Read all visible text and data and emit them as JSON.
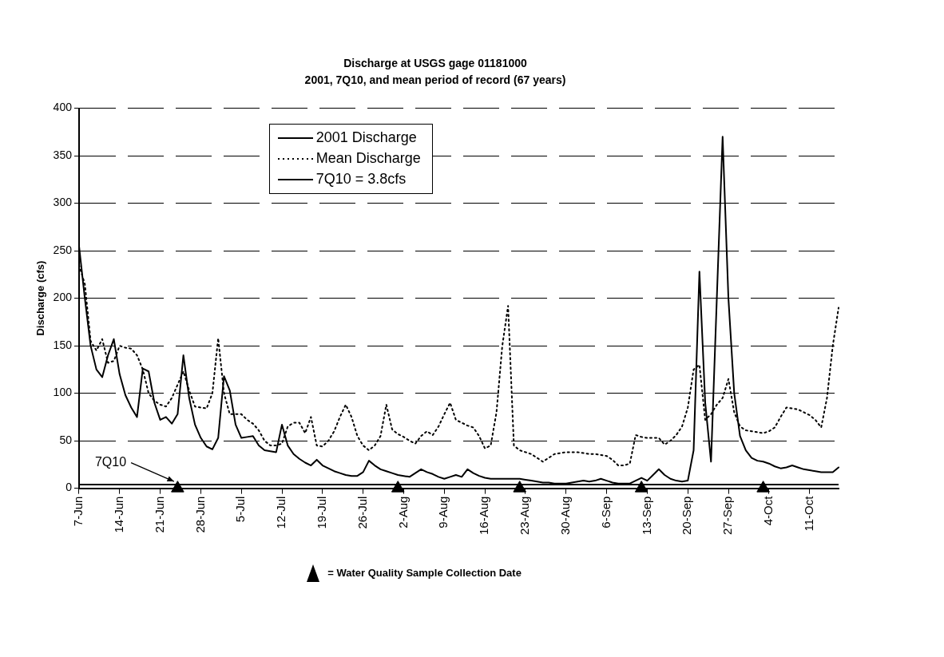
{
  "chart_data": {
    "type": "line",
    "title": "Discharge at USGS gage 01181000",
    "subtitle": "2001, 7Q10, and mean period of record (67 years)",
    "ylabel": "Discharge (cfs)",
    "categories": [
      "7-Jun",
      null,
      null,
      null,
      null,
      null,
      null,
      "14-Jun",
      null,
      null,
      null,
      null,
      null,
      null,
      "21-Jun",
      null,
      null,
      null,
      null,
      null,
      null,
      "28-Jun",
      null,
      null,
      null,
      null,
      null,
      null,
      "5-Jul",
      null,
      null,
      null,
      null,
      null,
      null,
      "12-Jul",
      null,
      null,
      null,
      null,
      null,
      null,
      "19-Jul",
      null,
      null,
      null,
      null,
      null,
      null,
      "26-Jul",
      null,
      null,
      null,
      null,
      null,
      null,
      "2-Aug",
      null,
      null,
      null,
      null,
      null,
      null,
      "9-Aug",
      null,
      null,
      null,
      null,
      null,
      null,
      "16-Aug",
      null,
      null,
      null,
      null,
      null,
      null,
      "23-Aug",
      null,
      null,
      null,
      null,
      null,
      null,
      "30-Aug",
      null,
      null,
      null,
      null,
      null,
      null,
      "6-Sep",
      null,
      null,
      null,
      null,
      null,
      null,
      "13-Sep",
      null,
      null,
      null,
      null,
      null,
      null,
      "20-Sep",
      null,
      null,
      null,
      null,
      null,
      null,
      "27-Sep",
      null,
      null,
      null,
      null,
      null,
      null,
      "4-Oct",
      null,
      null,
      null,
      null,
      null,
      null,
      "11-Oct",
      null,
      null,
      null,
      null,
      null
    ],
    "series": [
      {
        "name": "2001 Discharge",
        "color": "#000000",
        "line_style": "solid",
        "values": [
          255,
          200,
          150,
          125,
          117,
          140,
          157,
          120,
          98,
          85,
          75,
          126,
          123,
          90,
          72,
          75,
          68,
          78,
          140,
          95,
          67,
          53,
          44,
          41,
          53,
          118,
          103,
          67,
          53,
          54,
          55,
          45,
          40,
          39,
          38,
          67,
          45,
          36,
          31,
          27,
          24,
          30,
          24,
          21,
          18,
          16,
          14,
          13,
          13,
          17,
          29,
          24,
          20,
          18,
          16,
          14,
          13,
          12,
          16,
          20,
          17,
          15,
          12,
          10,
          12,
          14,
          12,
          20,
          16,
          13,
          11,
          10,
          10,
          10,
          10,
          10,
          10,
          9,
          8,
          7,
          6,
          6,
          5,
          5,
          5,
          6,
          7,
          8,
          7,
          8,
          10,
          8,
          6,
          5,
          5,
          5,
          8,
          11,
          8,
          14,
          20,
          14,
          10,
          8,
          7,
          8,
          40,
          228,
          90,
          28,
          200,
          370,
          200,
          100,
          55,
          40,
          32,
          29,
          28,
          26,
          23,
          21,
          22,
          24,
          22,
          20,
          19,
          18,
          17,
          17,
          17,
          22
        ]
      },
      {
        "name": "Mean Discharge",
        "color": "#000000",
        "line_style": "dotted",
        "values": [
          235,
          215,
          155,
          145,
          157,
          132,
          134,
          150,
          148,
          147,
          140,
          125,
          100,
          92,
          88,
          86,
          95,
          109,
          123,
          103,
          86,
          85,
          84,
          100,
          158,
          100,
          78,
          78,
          78,
          72,
          68,
          61,
          50,
          45,
          45,
          47,
          65,
          69,
          69,
          58,
          75,
          45,
          44,
          50,
          60,
          75,
          88,
          75,
          55,
          45,
          40,
          45,
          55,
          88,
          62,
          57,
          54,
          50,
          47,
          55,
          60,
          56,
          65,
          78,
          90,
          72,
          69,
          66,
          64,
          55,
          42,
          45,
          80,
          150,
          192,
          45,
          40,
          38,
          36,
          32,
          28,
          32,
          36,
          37,
          38,
          38,
          38,
          37,
          36,
          36,
          35,
          34,
          30,
          24,
          24,
          26,
          56,
          54,
          53,
          53,
          53,
          46,
          50,
          56,
          65,
          85,
          125,
          130,
          72,
          78,
          88,
          95,
          115,
          80,
          65,
          61,
          60,
          59,
          58,
          60,
          64,
          75,
          85,
          84,
          83,
          80,
          77,
          72,
          64,
          95,
          150,
          190
        ]
      },
      {
        "type": "scatter",
        "color": "#000000",
        "marker": "triangle",
        "values": [
          null,
          null,
          null,
          null,
          null,
          null,
          null,
          null,
          null,
          null,
          null,
          null,
          null,
          null,
          null,
          null,
          null,
          0,
          null,
          null,
          null,
          null,
          null,
          null,
          null,
          null,
          null,
          null,
          null,
          null,
          null,
          null,
          null,
          null,
          null,
          null,
          null,
          null,
          null,
          null,
          null,
          null,
          null,
          null,
          null,
          null,
          null,
          null,
          null,
          null,
          null,
          null,
          null,
          null,
          null,
          0,
          null,
          null,
          null,
          null,
          null,
          null,
          null,
          null,
          null,
          null,
          null,
          null,
          null,
          null,
          null,
          null,
          null,
          null,
          null,
          null,
          0,
          null,
          null,
          null,
          null,
          null,
          null,
          null,
          null,
          null,
          null,
          null,
          null,
          null,
          null,
          null,
          null,
          null,
          null,
          null,
          null,
          0,
          null,
          null,
          null,
          null,
          null,
          null,
          null,
          null,
          null,
          null,
          null,
          null,
          null,
          null,
          null,
          null,
          null,
          null,
          null,
          null,
          0,
          null,
          null,
          null,
          null,
          null,
          null,
          null,
          null,
          null,
          null,
          null,
          null,
          null
        ]
      }
    ],
    "ylim": [
      0,
      400
    ],
    "yticks": [
      0,
      50,
      100,
      150,
      200,
      250,
      300,
      350,
      400
    ],
    "grid": "y",
    "legend": "top",
    "marker": "none",
    "ref_lines": [
      {
        "axis": "y",
        "value": 3.8,
        "label": "7Q10 = 3.8cfs",
        "color": "#000000",
        "line_style": "solid"
      }
    ],
    "annotations": [
      {
        "text": "7Q10",
        "y": 3.8
      },
      "= Water Quality Sample Collection Date"
    ]
  }
}
